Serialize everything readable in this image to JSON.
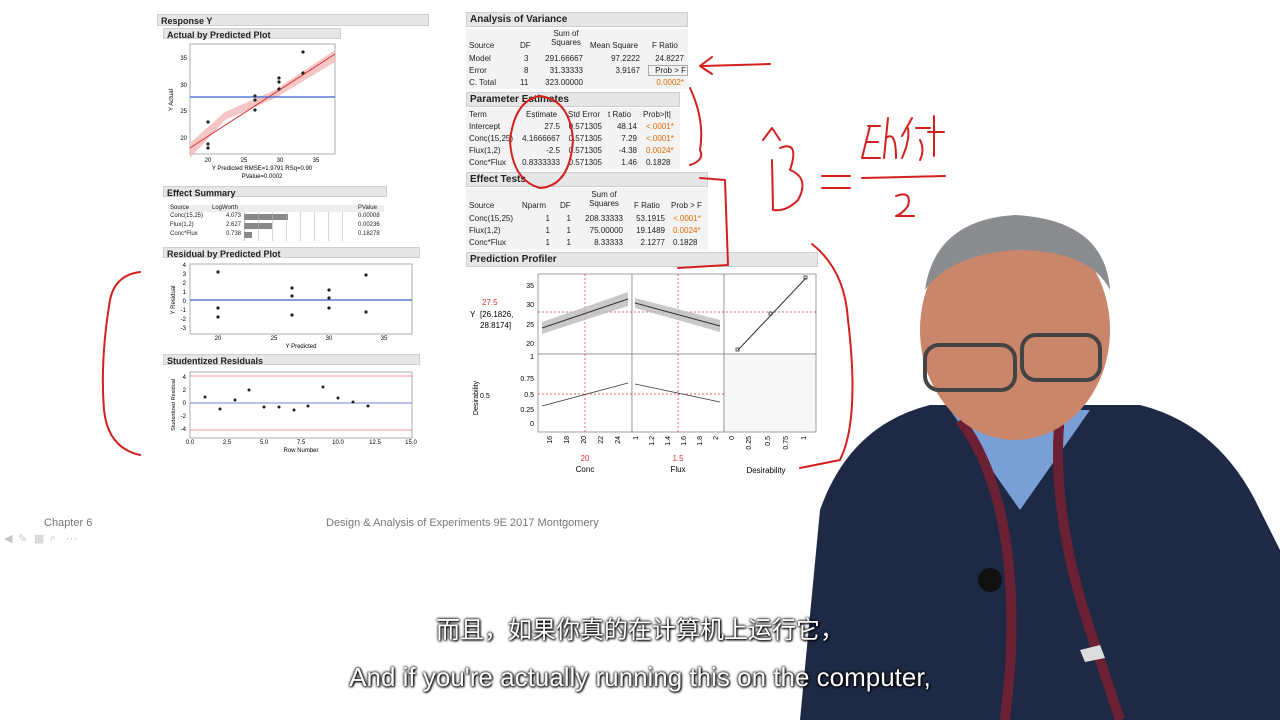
{
  "left": {
    "response_title": "Response Y",
    "actual_plot": {
      "title": "Actual by Predicted Plot",
      "ylabel": "Y Actual",
      "yticks": [
        "35",
        "30",
        "25",
        "20"
      ],
      "xticks": [
        "20",
        "25",
        "30",
        "35"
      ],
      "caption_line1": "Y Predicted RMSE=1.9791 RSq=0.90",
      "caption_line2": "PValue=0.0002"
    },
    "effect_summary": {
      "title": "Effect Summary",
      "headers": [
        "Source",
        "LogWorth",
        "PValue"
      ],
      "rows": [
        {
          "source": "Conc(15,25)",
          "logworth": "4.073",
          "bar": 0.5,
          "pvalue": "0.00008"
        },
        {
          "source": "Flux(1,2)",
          "logworth": "2.627",
          "bar": 0.32,
          "pvalue": "0.00236"
        },
        {
          "source": "Conc*Flux",
          "logworth": "0.738",
          "bar": 0.09,
          "pvalue": "0.18278"
        }
      ]
    },
    "residual_plot": {
      "title": "Residual by Predicted Plot",
      "ylabel": "Y Residual",
      "yticks": [
        "4",
        "3",
        "2",
        "1",
        "0",
        "-1",
        "-2",
        "-3"
      ],
      "xticks": [
        "20",
        "25",
        "30",
        "35"
      ],
      "xlabel": "Y Predicted"
    },
    "studentized": {
      "title": "Studentized Residuals",
      "ylabel": "Studentized Residual",
      "yticks": [
        "4",
        "2",
        "0",
        "-2",
        "-4"
      ],
      "xticks": [
        "0.0",
        "2.5",
        "5.0",
        "7.5",
        "10.0",
        "12.5",
        "15.0"
      ],
      "xlabel": "Row Number"
    }
  },
  "anova": {
    "title": "Analysis of Variance",
    "headers": [
      "Source",
      "DF",
      "Sum of Squares",
      "Mean Square",
      "F Ratio"
    ],
    "rows": [
      [
        "Model",
        "3",
        "291.66667",
        "97.2222",
        "24.8227"
      ],
      [
        "Error",
        "8",
        "31.33333",
        "3.9167",
        "Prob > F"
      ],
      [
        "C. Total",
        "11",
        "323.00000",
        "",
        "0.0002*"
      ]
    ]
  },
  "params": {
    "title": "Parameter Estimates",
    "headers": [
      "Term",
      "Estimate",
      "Std Error",
      "t Ratio",
      "Prob>|t|"
    ],
    "rows": [
      [
        "Intercept",
        "27.5",
        "0.571305",
        "48.14",
        "<.0001*"
      ],
      [
        "Conc(15,25)",
        "4.1666667",
        "0.571305",
        "7.29",
        "<.0001*"
      ],
      [
        "Flux(1,2)",
        "-2.5",
        "0.571305",
        "-4.38",
        "0.0024*"
      ],
      [
        "Conc*Flux",
        "0.8333333",
        "0.571305",
        "1.46",
        "0.1828"
      ]
    ]
  },
  "effects": {
    "title": "Effect Tests",
    "headers": [
      "Source",
      "Nparm",
      "DF",
      "Sum of Squares",
      "F Ratio",
      "Prob > F"
    ],
    "rows": [
      [
        "Conc(15,25)",
        "1",
        "1",
        "208.33333",
        "53.1915",
        "<.0001*"
      ],
      [
        "Flux(1,2)",
        "1",
        "1",
        "75.00000",
        "19.1489",
        "0.0024*"
      ],
      [
        "Conc*Flux",
        "1",
        "1",
        "8.33333",
        "2.1277",
        "0.1828"
      ]
    ]
  },
  "profiler": {
    "title": "Prediction Profiler",
    "y_value": "27.5",
    "y_label": "Y",
    "y_ci": "[26.1826,",
    "y_ci2": "28.8174]",
    "y_ticks": [
      "35",
      "30",
      "25",
      "20"
    ],
    "des_label": "Desirability",
    "des_value": "0.5",
    "des_ticks": [
      "1",
      "0.75",
      "0.5",
      "0.25",
      "0"
    ],
    "conc_ticks": [
      "16",
      "18",
      "20",
      "22",
      "24"
    ],
    "conc_value": "20",
    "conc_label": "Conc",
    "flux_ticks": [
      "1",
      "1.2",
      "1.4",
      "1.6",
      "1.8",
      "2"
    ],
    "flux_value": "1.5",
    "flux_label": "Flux",
    "dcol_ticks": [
      "0",
      "0.25",
      "0.5",
      "0.75",
      "1"
    ],
    "dcol_label": "Desirability"
  },
  "footer": {
    "chapter": "Chapter 6",
    "book": "Design & Analysis of Experiments 9E 2017 Montgomery"
  },
  "subtitles": {
    "zh": "而且，如果你真的在计算机上运行它，",
    "en": "And if you're actually running this on the computer,"
  },
  "annotation": {
    "colors": {
      "ink": "#d4201e"
    }
  }
}
